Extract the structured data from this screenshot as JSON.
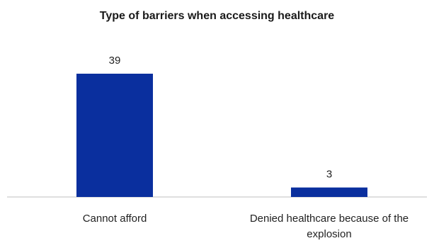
{
  "chart_data": {
    "type": "bar",
    "title": "Type of barriers when accessing  healthcare",
    "categories": [
      "Cannot afford",
      "Denied healthcare because of the explosion"
    ],
    "values": [
      39,
      3
    ],
    "ylim": [
      0,
      39
    ],
    "bar_color": "#0A2F9E",
    "axis_color": "#BFBFBF",
    "grid": false,
    "legend": "none",
    "data_labels": true
  }
}
